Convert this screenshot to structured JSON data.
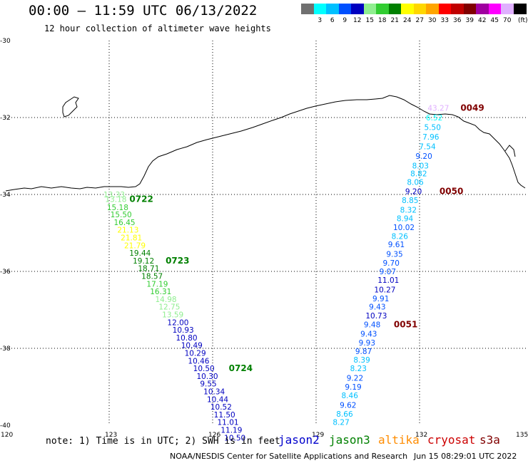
{
  "title": "00:00 – 11:59 UTC 06/13/2022",
  "subtitle": "12 hour collection of altimeter wave heights",
  "legend": {
    "unit": "(ft)",
    "bins": [
      {
        "label": "",
        "color": "#707070"
      },
      {
        "label": "3",
        "color": "#00ffff"
      },
      {
        "label": "6",
        "color": "#00c0ff"
      },
      {
        "label": "9",
        "color": "#0050ff"
      },
      {
        "label": "12",
        "color": "#0000c0"
      },
      {
        "label": "15",
        "color": "#90ee90"
      },
      {
        "label": "18",
        "color": "#32cd32"
      },
      {
        "label": "21",
        "color": "#008000"
      },
      {
        "label": "24",
        "color": "#ffff00"
      },
      {
        "label": "27",
        "color": "#ffd700"
      },
      {
        "label": "30",
        "color": "#ffa500"
      },
      {
        "label": "33",
        "color": "#ff0000"
      },
      {
        "label": "36",
        "color": "#c00000"
      },
      {
        "label": "39",
        "color": "#800000"
      },
      {
        "label": "42",
        "color": "#a000a0"
      },
      {
        "label": "45",
        "color": "#ff00ff"
      },
      {
        "label": "70",
        "color": "#e0b0ff"
      },
      {
        "label": "",
        "color": "#000000"
      }
    ]
  },
  "axes": {
    "lat_ticks": [
      "-30",
      "-32",
      "-34",
      "-36",
      "-38",
      "-40"
    ],
    "lon_ticks": [
      "120",
      "123",
      "126",
      "129",
      "132",
      "135"
    ]
  },
  "time_labels": [
    {
      "text": "0722",
      "color": "#008000",
      "track": "jason3"
    },
    {
      "text": "0723",
      "color": "#008000",
      "track": "jason3"
    },
    {
      "text": "0724",
      "color": "#008000",
      "track": "jason3"
    },
    {
      "text": "0049",
      "color": "#800000",
      "track": "cryosat"
    },
    {
      "text": "0050",
      "color": "#800000",
      "track": "cryosat"
    },
    {
      "text": "0051",
      "color": "#800000",
      "track": "cryosat"
    }
  ],
  "tracks": {
    "jason3": [
      {
        "lon": 123.0,
        "lat": -34.0,
        "text": "13.33",
        "color": "#90ee90"
      },
      {
        "lon": 123.05,
        "lat": -34.12,
        "text": "13.18",
        "color": "#90ee90"
      },
      {
        "lon": 123.1,
        "lat": -34.33,
        "text": "15.18",
        "color": "#32cd32"
      },
      {
        "lon": 123.2,
        "lat": -34.52,
        "text": "15.50",
        "color": "#32cd32"
      },
      {
        "lon": 123.3,
        "lat": -34.72,
        "text": "16.45",
        "color": "#32cd32"
      },
      {
        "lon": 123.4,
        "lat": -34.92,
        "text": "21.13",
        "color": "#ffff00"
      },
      {
        "lon": 123.5,
        "lat": -35.12,
        "text": "21.81",
        "color": "#ffff00"
      },
      {
        "lon": 123.6,
        "lat": -35.32,
        "text": "21.79",
        "color": "#ffff00"
      },
      {
        "lon": 123.75,
        "lat": -35.52,
        "text": "19.44",
        "color": "#008000"
      },
      {
        "lon": 123.85,
        "lat": -35.72,
        "text": "19.12",
        "color": "#008000"
      },
      {
        "lon": 124.0,
        "lat": -35.92,
        "text": "18.71",
        "color": "#008000"
      },
      {
        "lon": 124.1,
        "lat": -36.12,
        "text": "18.57",
        "color": "#008000"
      },
      {
        "lon": 124.25,
        "lat": -36.32,
        "text": "17.19",
        "color": "#32cd32"
      },
      {
        "lon": 124.35,
        "lat": -36.52,
        "text": "16.31",
        "color": "#32cd32"
      },
      {
        "lon": 124.5,
        "lat": -36.72,
        "text": "14.98",
        "color": "#90ee90"
      },
      {
        "lon": 124.6,
        "lat": -36.92,
        "text": "12.75",
        "color": "#90ee90"
      },
      {
        "lon": 124.7,
        "lat": -37.12,
        "text": "13.59",
        "color": "#90ee90"
      },
      {
        "lon": 124.85,
        "lat": -37.32,
        "text": "12.00",
        "color": "#0000c0"
      },
      {
        "lon": 125.0,
        "lat": -37.52,
        "text": "10.93",
        "color": "#0000c0"
      },
      {
        "lon": 125.1,
        "lat": -37.72,
        "text": "10.80",
        "color": "#0000c0"
      },
      {
        "lon": 125.25,
        "lat": -37.92,
        "text": "10.49",
        "color": "#0000c0"
      },
      {
        "lon": 125.35,
        "lat": -38.12,
        "text": "10.29",
        "color": "#0000c0"
      },
      {
        "lon": 125.45,
        "lat": -38.32,
        "text": "10.46",
        "color": "#0000c0"
      },
      {
        "lon": 125.6,
        "lat": -38.52,
        "text": "10.50",
        "color": "#0000c0"
      },
      {
        "lon": 125.7,
        "lat": -38.72,
        "text": "10.30",
        "color": "#0000c0"
      },
      {
        "lon": 125.8,
        "lat": -38.92,
        "text": "9.55",
        "color": "#0000c0"
      },
      {
        "lon": 125.9,
        "lat": -39.12,
        "text": "10.34",
        "color": "#0000c0"
      },
      {
        "lon": 126.0,
        "lat": -39.32,
        "text": "10.44",
        "color": "#0000c0"
      },
      {
        "lon": 126.1,
        "lat": -39.52,
        "text": "10.52",
        "color": "#0000c0"
      },
      {
        "lon": 126.2,
        "lat": -39.72,
        "text": "11.50",
        "color": "#0000c0"
      },
      {
        "lon": 126.3,
        "lat": -39.92,
        "text": "11.01",
        "color": "#0000c0"
      },
      {
        "lon": 126.4,
        "lat": -40.12,
        "text": "11.19",
        "color": "#0000c0"
      },
      {
        "lon": 126.5,
        "lat": -40.32,
        "text": "10.50",
        "color": "#0000c0"
      }
    ],
    "cryosat": [
      {
        "lon": 132.4,
        "lat": -31.75,
        "text": "43.27",
        "color": "#e0b0ff"
      },
      {
        "lon": 132.35,
        "lat": -32.0,
        "text": "6.52",
        "color": "#00ffff"
      },
      {
        "lon": 132.3,
        "lat": -32.25,
        "text": "5.50",
        "color": "#00c0ff"
      },
      {
        "lon": 132.25,
        "lat": -32.5,
        "text": "7.96",
        "color": "#00c0ff"
      },
      {
        "lon": 132.15,
        "lat": -32.75,
        "text": "7.54",
        "color": "#00c0ff"
      },
      {
        "lon": 132.05,
        "lat": -33.0,
        "text": "9.20",
        "color": "#0050ff"
      },
      {
        "lon": 131.95,
        "lat": -33.25,
        "text": "8.03",
        "color": "#00c0ff"
      },
      {
        "lon": 131.9,
        "lat": -33.45,
        "text": "8.82",
        "color": "#00c0ff"
      },
      {
        "lon": 131.8,
        "lat": -33.68,
        "text": "8.06",
        "color": "#00c0ff"
      },
      {
        "lon": 131.75,
        "lat": -33.92,
        "text": "9.20",
        "color": "#0000c0"
      },
      {
        "lon": 131.65,
        "lat": -34.15,
        "text": "8.85",
        "color": "#00c0ff"
      },
      {
        "lon": 131.6,
        "lat": -34.4,
        "text": "8.32",
        "color": "#00c0ff"
      },
      {
        "lon": 131.5,
        "lat": -34.62,
        "text": "8.94",
        "color": "#00c0ff"
      },
      {
        "lon": 131.4,
        "lat": -34.85,
        "text": "10.02",
        "color": "#0050ff"
      },
      {
        "lon": 131.35,
        "lat": -35.08,
        "text": "8.26",
        "color": "#00c0ff"
      },
      {
        "lon": 131.25,
        "lat": -35.3,
        "text": "9.61",
        "color": "#0050ff"
      },
      {
        "lon": 131.2,
        "lat": -35.55,
        "text": "9.35",
        "color": "#0050ff"
      },
      {
        "lon": 131.1,
        "lat": -35.78,
        "text": "9.70",
        "color": "#0050ff"
      },
      {
        "lon": 131.0,
        "lat": -36.0,
        "text": "9.07",
        "color": "#0050ff"
      },
      {
        "lon": 130.95,
        "lat": -36.22,
        "text": "11.01",
        "color": "#0000c0"
      },
      {
        "lon": 130.85,
        "lat": -36.47,
        "text": "10.27",
        "color": "#0000c0"
      },
      {
        "lon": 130.8,
        "lat": -36.7,
        "text": "9.91",
        "color": "#0050ff"
      },
      {
        "lon": 130.7,
        "lat": -36.92,
        "text": "9.43",
        "color": "#0050ff"
      },
      {
        "lon": 130.6,
        "lat": -37.15,
        "text": "10.73",
        "color": "#0000c0"
      },
      {
        "lon": 130.55,
        "lat": -37.38,
        "text": "9.48",
        "color": "#0050ff"
      },
      {
        "lon": 130.45,
        "lat": -37.62,
        "text": "9.43",
        "color": "#0050ff"
      },
      {
        "lon": 130.4,
        "lat": -37.85,
        "text": "9.93",
        "color": "#0050ff"
      },
      {
        "lon": 130.3,
        "lat": -38.07,
        "text": "9.87",
        "color": "#0050ff"
      },
      {
        "lon": 130.25,
        "lat": -38.3,
        "text": "8.39",
        "color": "#00c0ff"
      },
      {
        "lon": 130.15,
        "lat": -38.52,
        "text": "8.23",
        "color": "#00c0ff"
      },
      {
        "lon": 130.05,
        "lat": -38.77,
        "text": "9.22",
        "color": "#0050ff"
      },
      {
        "lon": 130.0,
        "lat": -39.0,
        "text": "9.19",
        "color": "#0050ff"
      },
      {
        "lon": 129.9,
        "lat": -39.22,
        "text": "8.46",
        "color": "#00c0ff"
      },
      {
        "lon": 129.85,
        "lat": -39.47,
        "text": "9.62",
        "color": "#0050ff"
      },
      {
        "lon": 129.75,
        "lat": -39.7,
        "text": "8.66",
        "color": "#00c0ff"
      },
      {
        "lon": 129.65,
        "lat": -39.92,
        "text": "8.27",
        "color": "#00c0ff"
      }
    ]
  },
  "footer": {
    "note": "note: 1) Time is in UTC; 2) SWH is in feet",
    "satellites": [
      {
        "name": "jason2",
        "color": "#0000cc"
      },
      {
        "name": "jason3",
        "color": "#008000"
      },
      {
        "name": "altika",
        "color": "#ff8c00"
      },
      {
        "name": "cryosat",
        "color": "#cc0000"
      },
      {
        "name": "s3a",
        "color": "#800000"
      }
    ],
    "credit": "NOAA/NESDIS Center for Satellite Applications and Research",
    "timestamp": "Jun 15 08:29:01 UTC 2022"
  }
}
